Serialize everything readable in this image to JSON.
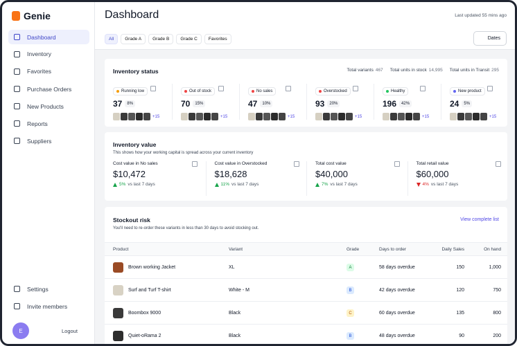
{
  "sidebar": {
    "brand": "Genie",
    "nav": [
      "Dashboard",
      "Inventory",
      "Favorites",
      "Purchase Orders",
      "New Products",
      "Reports",
      "Suppliers"
    ],
    "footer": [
      "Settings",
      "Invite members"
    ],
    "avatar": "E",
    "logout": "Logout"
  },
  "header": {
    "title": "Dashboard",
    "last_updated": "Last updated 55 mins ago",
    "filters": [
      "All",
      "Grade A",
      "Grade B",
      "Grade C",
      "Favorites"
    ],
    "dates": "Dates"
  },
  "inventory_status": {
    "title": "Inventory status",
    "totals": [
      {
        "label": "Total variants",
        "value": "467"
      },
      {
        "label": "Total units in stock",
        "value": "14,995"
      },
      {
        "label": "Total units in Transit",
        "value": "295"
      }
    ],
    "tiles": [
      {
        "label": "Running low",
        "count": "37",
        "percent": "8%",
        "more": "+15",
        "color": "#f59e0b"
      },
      {
        "label": "Out of stock",
        "count": "70",
        "percent": "15%",
        "more": "+15",
        "color": "#ef4444"
      },
      {
        "label": "No sales",
        "count": "47",
        "percent": "10%",
        "more": "+15",
        "color": "#ef4444"
      },
      {
        "label": "Overstocked",
        "count": "93",
        "percent": "20%",
        "more": "+15",
        "color": "#ef4444"
      },
      {
        "label": "Healthy",
        "count": "196",
        "percent": "42%",
        "more": "+15",
        "color": "#22c55e"
      },
      {
        "label": "New product",
        "count": "24",
        "percent": "5%",
        "more": "+15",
        "color": "#6366f1"
      }
    ]
  },
  "inventory_value": {
    "title": "Inventory value",
    "subtitle": "This shows how your working capital is spread across your current inventory",
    "tiles": [
      {
        "label": "Cost value in No sales",
        "value": "$10,472",
        "change": "5%",
        "trend": "up",
        "note": "vs last 7 days"
      },
      {
        "label": "Cost value in Overstocked",
        "value": "$18,628",
        "change": "11%",
        "trend": "up",
        "note": "vs last 7 days"
      },
      {
        "label": "Total cost value",
        "value": "$40,000",
        "change": "7%",
        "trend": "up",
        "note": "vs last 7 days"
      },
      {
        "label": "Total retail value",
        "value": "$60,000",
        "change": "4%",
        "trend": "down",
        "note": "vs last 7 days"
      }
    ]
  },
  "stockout_risk": {
    "title": "Stockout risk",
    "subtitle": "You'll need to re-order these variants in less than 30 days to avoid stocking out.",
    "link": "View complete list",
    "columns": [
      "Product",
      "Variant",
      "Grade",
      "Days to order",
      "Daily Sales",
      "On hand"
    ],
    "rows": [
      [
        "Brown working Jacket",
        "XL",
        "A",
        "58 days overdue",
        "150",
        "1,000"
      ],
      [
        "Surf and Turf T-shirt",
        "White - M",
        "B",
        "42 days overdue",
        "120",
        "750"
      ],
      [
        "Boombox 9000",
        "Black",
        "C",
        "60 days overdue",
        "135",
        "800"
      ],
      [
        "Quiet-oRama 2",
        "Black",
        "B",
        "48 days overdue",
        "90",
        "200"
      ]
    ]
  }
}
